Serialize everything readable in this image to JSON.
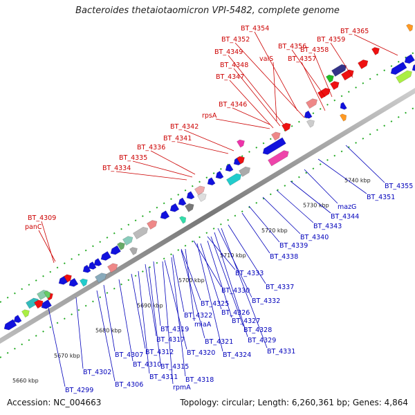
{
  "title": "Bacteroides thetaiotaomicron VPI-5482, complete genome",
  "accession": "Accession: NC_004663",
  "summary": "Topology: circular; Length: 6,260,361 bp; Genes: 4,864",
  "ruler_ticks": [
    {
      "kbp": 5660,
      "label": "5660 kbp"
    },
    {
      "kbp": 5670,
      "label": "5670 kbp"
    },
    {
      "kbp": 5680,
      "label": "5680 kbp"
    },
    {
      "kbp": 5690,
      "label": "5690 kbp"
    },
    {
      "kbp": 5700,
      "label": "5700 kbp"
    },
    {
      "kbp": 5710,
      "label": "5710 kbp"
    },
    {
      "kbp": 5720,
      "label": "5720 kbp"
    },
    {
      "kbp": 5730,
      "label": "5730 kbp"
    },
    {
      "kbp": 5740,
      "label": "5740 kbp"
    }
  ],
  "forward_labels": [
    "BT_4354",
    "BT_4365",
    "BT_4352",
    "BT_4356",
    "BT_4358",
    "BT_4359",
    "BT_4349",
    "valS",
    "BT_4357",
    "BT_4348",
    "BT_4347",
    "BT_4346",
    "rpsA",
    "BT_4342",
    "BT_4341",
    "BT_4336",
    "BT_4335",
    "BT_4334",
    "BT_4309",
    "panC"
  ],
  "reverse_labels": [
    "BT_4355",
    "BT_4351",
    "mazG",
    "BT_4344",
    "BT_4343",
    "BT_4340",
    "BT_4339",
    "BT_4338",
    "BT_4333",
    "BT_4337",
    "BT_4330",
    "BT_4332",
    "BT_4325",
    "BT_4326",
    "BT_4327",
    "BT_4322",
    "miaA",
    "BT_4328",
    "BT_4319",
    "BT_4329",
    "BT_4317",
    "BT_4321",
    "BT_4331",
    "BT_4320",
    "BT_4324",
    "BT_4307",
    "BT_4312",
    "BT_4310",
    "BT_4315",
    "BT_4302",
    "BT_4311",
    "BT_4318",
    "BT_4306",
    "rpmA",
    "BT_4299"
  ],
  "colors": {
    "forward_label": "#cc0000",
    "reverse_label": "#0000bb",
    "backbone": "#888888",
    "forward_gene": "#ee1111",
    "reverse_gene": "#1111dd",
    "dots": "#228822"
  }
}
